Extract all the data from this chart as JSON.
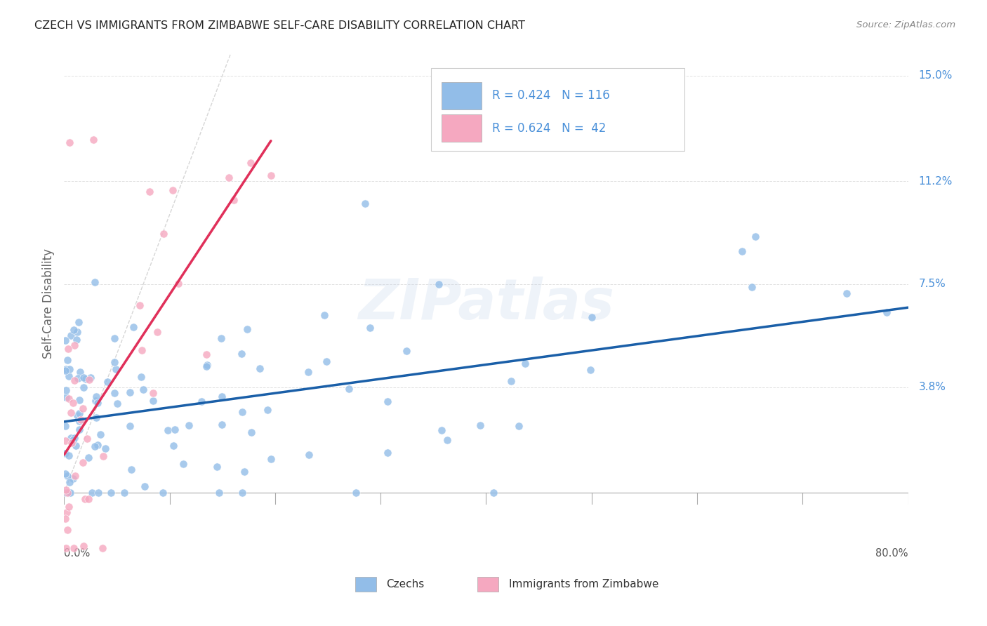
{
  "title": "CZECH VS IMMIGRANTS FROM ZIMBABWE SELF-CARE DISABILITY CORRELATION CHART",
  "source": "Source: ZipAtlas.com",
  "ylabel": "Self-Care Disability",
  "yticks": [
    0.0,
    0.038,
    0.075,
    0.112,
    0.15
  ],
  "ytick_labels": [
    "",
    "3.8%",
    "7.5%",
    "11.2%",
    "15.0%"
  ],
  "xmin": 0.0,
  "xmax": 0.8,
  "ymin": -0.022,
  "ymax": 0.158,
  "czech_R": 0.424,
  "czech_N": 116,
  "zimb_R": 0.624,
  "zimb_N": 42,
  "czech_color": "#92bde8",
  "zimb_color": "#f5a8c0",
  "trendline_czech_color": "#1a5fa8",
  "trendline_zimb_color": "#e0305a",
  "diagonal_color": "#cccccc",
  "background_color": "#ffffff",
  "grid_color": "#dddddd",
  "title_color": "#222222",
  "label_color": "#4a90d9",
  "source_color": "#888888",
  "watermark": "ZIPatlas",
  "legend_label_czech": "Czechs",
  "legend_label_zimb": "Immigrants from Zimbabwe"
}
